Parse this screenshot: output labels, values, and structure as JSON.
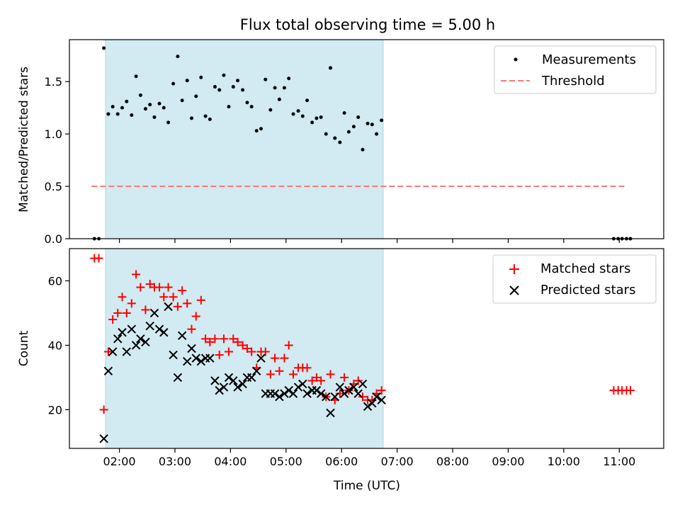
{
  "title": "Flux total observing time = 5.00 h",
  "colors": {
    "shade": "#add8e6",
    "measurement": "#000000",
    "threshold": "#ff7777",
    "matched": "#ff0000",
    "predicted": "#000000"
  },
  "chart_data": [
    {
      "type": "scatter",
      "ylabel": "Matched/Predicted stars",
      "xlim": [
        1.1,
        11.8
      ],
      "ylim": [
        0.0,
        1.9
      ],
      "yticks": [
        0.0,
        0.5,
        1.0,
        1.5
      ],
      "ytick_labels": [
        "0.0",
        "0.5",
        "1.0",
        "1.5"
      ],
      "shaded_span": [
        1.75,
        6.75
      ],
      "legend": {
        "position": "upper-right",
        "entries": [
          "Measurements",
          "Threshold"
        ]
      },
      "threshold": {
        "name": "Threshold",
        "y": 0.5,
        "x": [
          1.5,
          11.1
        ]
      },
      "series": [
        {
          "name": "Measurements",
          "marker": "dot",
          "points": [
            [
              1.55,
              0.0
            ],
            [
              1.63,
              0.0
            ],
            [
              1.72,
              1.82
            ],
            [
              1.8,
              1.19
            ],
            [
              1.88,
              1.26
            ],
            [
              1.97,
              1.19
            ],
            [
              2.05,
              1.25
            ],
            [
              2.13,
              1.31
            ],
            [
              2.22,
              1.18
            ],
            [
              2.3,
              1.55
            ],
            [
              2.38,
              1.37
            ],
            [
              2.47,
              1.24
            ],
            [
              2.55,
              1.28
            ],
            [
              2.63,
              1.16
            ],
            [
              2.72,
              1.29
            ],
            [
              2.8,
              1.25
            ],
            [
              2.88,
              1.11
            ],
            [
              2.97,
              1.48
            ],
            [
              3.05,
              1.74
            ],
            [
              3.13,
              1.32
            ],
            [
              3.22,
              1.51
            ],
            [
              3.3,
              1.15
            ],
            [
              3.38,
              1.36
            ],
            [
              3.47,
              1.54
            ],
            [
              3.55,
              1.17
            ],
            [
              3.63,
              1.14
            ],
            [
              3.72,
              1.45
            ],
            [
              3.8,
              1.42
            ],
            [
              3.88,
              1.56
            ],
            [
              3.97,
              1.26
            ],
            [
              4.05,
              1.45
            ],
            [
              4.13,
              1.51
            ],
            [
              4.22,
              1.42
            ],
            [
              4.3,
              1.3
            ],
            [
              4.38,
              1.26
            ],
            [
              4.47,
              1.03
            ],
            [
              4.55,
              1.05
            ],
            [
              4.63,
              1.52
            ],
            [
              4.72,
              1.23
            ],
            [
              4.8,
              1.44
            ],
            [
              4.88,
              1.33
            ],
            [
              4.97,
              1.44
            ],
            [
              5.05,
              1.53
            ],
            [
              5.13,
              1.19
            ],
            [
              5.22,
              1.22
            ],
            [
              5.3,
              1.17
            ],
            [
              5.38,
              1.32
            ],
            [
              5.47,
              1.11
            ],
            [
              5.55,
              1.15
            ],
            [
              5.63,
              1.16
            ],
            [
              5.72,
              1.0
            ],
            [
              5.8,
              1.63
            ],
            [
              5.88,
              0.96
            ],
            [
              5.97,
              0.92
            ],
            [
              6.05,
              1.2
            ],
            [
              6.13,
              1.02
            ],
            [
              6.22,
              1.07
            ],
            [
              6.3,
              1.16
            ],
            [
              6.38,
              0.85
            ],
            [
              6.47,
              1.1
            ],
            [
              6.55,
              1.09
            ],
            [
              6.63,
              1.0
            ],
            [
              6.72,
              1.13
            ],
            [
              10.9,
              0.0
            ],
            [
              10.98,
              0.0
            ],
            [
              11.05,
              0.0
            ],
            [
              11.13,
              0.0
            ],
            [
              11.2,
              0.0
            ]
          ]
        }
      ]
    },
    {
      "type": "scatter",
      "xlabel": "Time (UTC)",
      "ylabel": "Count",
      "xlim": [
        1.1,
        11.8
      ],
      "ylim": [
        8,
        70
      ],
      "yticks": [
        20,
        40,
        60
      ],
      "ytick_labels": [
        "20",
        "40",
        "60"
      ],
      "xticks": [
        2,
        3,
        4,
        5,
        6,
        7,
        8,
        9,
        10,
        11
      ],
      "xtick_labels": [
        "02:00",
        "03:00",
        "04:00",
        "05:00",
        "06:00",
        "07:00",
        "08:00",
        "09:00",
        "10:00",
        "11:00"
      ],
      "shaded_span": [
        1.75,
        6.75
      ],
      "legend": {
        "position": "upper-right",
        "entries": [
          "Matched stars",
          "Predicted stars"
        ]
      },
      "series": [
        {
          "name": "Matched stars",
          "marker": "plus",
          "points": [
            [
              1.55,
              67
            ],
            [
              1.63,
              67
            ],
            [
              1.72,
              20
            ],
            [
              1.8,
              38
            ],
            [
              1.88,
              48
            ],
            [
              1.97,
              50
            ],
            [
              2.05,
              55
            ],
            [
              2.13,
              50
            ],
            [
              2.22,
              53
            ],
            [
              2.3,
              62
            ],
            [
              2.38,
              58
            ],
            [
              2.47,
              51
            ],
            [
              2.55,
              59
            ],
            [
              2.63,
              58
            ],
            [
              2.72,
              58
            ],
            [
              2.8,
              55
            ],
            [
              2.88,
              58
            ],
            [
              2.97,
              55
            ],
            [
              3.05,
              52
            ],
            [
              3.13,
              57
            ],
            [
              3.22,
              53
            ],
            [
              3.3,
              45
            ],
            [
              3.38,
              49
            ],
            [
              3.47,
              54
            ],
            [
              3.55,
              42
            ],
            [
              3.63,
              41
            ],
            [
              3.72,
              42
            ],
            [
              3.8,
              37
            ],
            [
              3.88,
              42
            ],
            [
              3.97,
              38
            ],
            [
              4.05,
              42
            ],
            [
              4.13,
              41
            ],
            [
              4.22,
              40
            ],
            [
              4.3,
              39
            ],
            [
              4.38,
              38
            ],
            [
              4.47,
              33
            ],
            [
              4.55,
              38
            ],
            [
              4.63,
              38
            ],
            [
              4.72,
              31
            ],
            [
              4.8,
              36
            ],
            [
              4.88,
              32
            ],
            [
              4.97,
              36
            ],
            [
              5.05,
              40
            ],
            [
              5.13,
              31
            ],
            [
              5.22,
              33
            ],
            [
              5.3,
              33
            ],
            [
              5.38,
              33
            ],
            [
              5.47,
              29
            ],
            [
              5.55,
              30
            ],
            [
              5.63,
              29
            ],
            [
              5.72,
              24
            ],
            [
              5.8,
              31
            ],
            [
              5.88,
              23
            ],
            [
              5.97,
              25
            ],
            [
              6.05,
              30
            ],
            [
              6.13,
              26
            ],
            [
              6.22,
              28
            ],
            [
              6.3,
              29
            ],
            [
              6.38,
              24
            ],
            [
              6.47,
              23
            ],
            [
              6.55,
              23
            ],
            [
              6.63,
              25
            ],
            [
              6.72,
              26
            ],
            [
              10.9,
              26
            ],
            [
              10.98,
              26
            ],
            [
              11.05,
              26
            ],
            [
              11.13,
              26
            ],
            [
              11.2,
              26
            ]
          ]
        },
        {
          "name": "Predicted stars",
          "marker": "x",
          "points": [
            [
              1.72,
              11
            ],
            [
              1.8,
              32
            ],
            [
              1.88,
              38
            ],
            [
              1.97,
              42
            ],
            [
              2.05,
              44
            ],
            [
              2.13,
              38
            ],
            [
              2.22,
              45
            ],
            [
              2.3,
              40
            ],
            [
              2.38,
              42
            ],
            [
              2.47,
              41
            ],
            [
              2.55,
              46
            ],
            [
              2.63,
              50
            ],
            [
              2.72,
              45
            ],
            [
              2.8,
              44
            ],
            [
              2.88,
              52
            ],
            [
              2.97,
              37
            ],
            [
              3.05,
              30
            ],
            [
              3.13,
              43
            ],
            [
              3.22,
              35
            ],
            [
              3.3,
              39
            ],
            [
              3.38,
              36
            ],
            [
              3.47,
              35
            ],
            [
              3.55,
              36
            ],
            [
              3.63,
              36
            ],
            [
              3.72,
              29
            ],
            [
              3.8,
              26
            ],
            [
              3.88,
              27
            ],
            [
              3.97,
              30
            ],
            [
              4.05,
              29
            ],
            [
              4.13,
              27
            ],
            [
              4.22,
              28
            ],
            [
              4.3,
              30
            ],
            [
              4.38,
              30
            ],
            [
              4.47,
              32
            ],
            [
              4.55,
              36
            ],
            [
              4.63,
              25
            ],
            [
              4.72,
              25
            ],
            [
              4.8,
              25
            ],
            [
              4.88,
              24
            ],
            [
              4.97,
              25
            ],
            [
              5.05,
              26
            ],
            [
              5.13,
              25
            ],
            [
              5.22,
              27
            ],
            [
              5.3,
              28
            ],
            [
              5.38,
              25
            ],
            [
              5.47,
              26
            ],
            [
              5.55,
              26
            ],
            [
              5.63,
              25
            ],
            [
              5.72,
              24
            ],
            [
              5.8,
              19
            ],
            [
              5.88,
              24
            ],
            [
              5.97,
              27
            ],
            [
              6.05,
              25
            ],
            [
              6.13,
              26
            ],
            [
              6.22,
              27
            ],
            [
              6.3,
              25
            ],
            [
              6.38,
              28
            ],
            [
              6.47,
              21
            ],
            [
              6.55,
              22
            ],
            [
              6.63,
              24
            ],
            [
              6.72,
              23
            ]
          ]
        }
      ]
    }
  ]
}
